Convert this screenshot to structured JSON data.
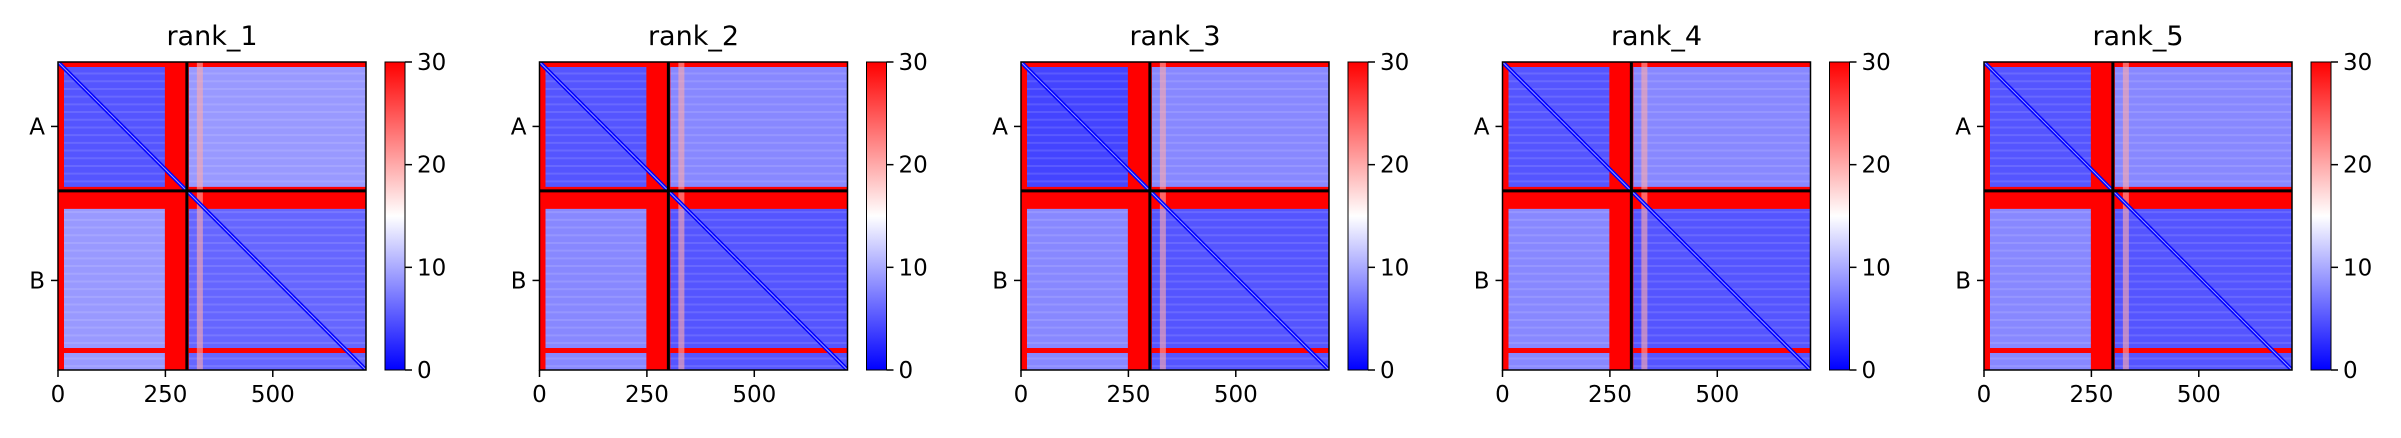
{
  "figure": {
    "colormap": [
      "#0000ff",
      "#ffffff",
      "#ff0000"
    ],
    "divider_color": "#000000",
    "xticks": [
      0,
      250,
      500
    ],
    "xticklabels": [
      "0",
      "250",
      "500"
    ],
    "ytick_labels": [
      "A",
      "B"
    ],
    "colorbar_ticks": [
      0,
      10,
      20,
      30
    ],
    "colorbar_ticklabels": [
      "0",
      "10",
      "20",
      "30"
    ],
    "colorbar_range": [
      0,
      30
    ]
  },
  "chart_data": [
    {
      "type": "heatmap",
      "title": "rank_1",
      "x_range": [
        0,
        717
      ],
      "chain_boundary": 300,
      "chains": [
        "A",
        "B"
      ],
      "value_range": [
        0,
        30
      ],
      "blocks": {
        "A-A": 5,
        "A-B": 9,
        "B-A": 9,
        "B-B": 6
      },
      "boundary_band_value": 30
    },
    {
      "type": "heatmap",
      "title": "rank_2",
      "x_range": [
        0,
        717
      ],
      "chain_boundary": 300,
      "chains": [
        "A",
        "B"
      ],
      "value_range": [
        0,
        30
      ],
      "blocks": {
        "A-A": 5,
        "A-B": 8,
        "B-A": 8,
        "B-B": 5
      },
      "boundary_band_value": 30
    },
    {
      "type": "heatmap",
      "title": "rank_3",
      "x_range": [
        0,
        717
      ],
      "chain_boundary": 300,
      "chains": [
        "A",
        "B"
      ],
      "value_range": [
        0,
        30
      ],
      "blocks": {
        "A-A": 4,
        "A-B": 8,
        "B-A": 8,
        "B-B": 5
      },
      "boundary_band_value": 30
    },
    {
      "type": "heatmap",
      "title": "rank_4",
      "x_range": [
        0,
        717
      ],
      "chain_boundary": 300,
      "chains": [
        "A",
        "B"
      ],
      "value_range": [
        0,
        30
      ],
      "blocks": {
        "A-A": 5,
        "A-B": 8,
        "B-A": 8,
        "B-B": 5
      },
      "boundary_band_value": 30
    },
    {
      "type": "heatmap",
      "title": "rank_5",
      "x_range": [
        0,
        717
      ],
      "chain_boundary": 300,
      "chains": [
        "A",
        "B"
      ],
      "value_range": [
        0,
        30
      ],
      "blocks": {
        "A-A": 5,
        "A-B": 8,
        "B-A": 8,
        "B-B": 5
      },
      "boundary_band_value": 30
    }
  ]
}
